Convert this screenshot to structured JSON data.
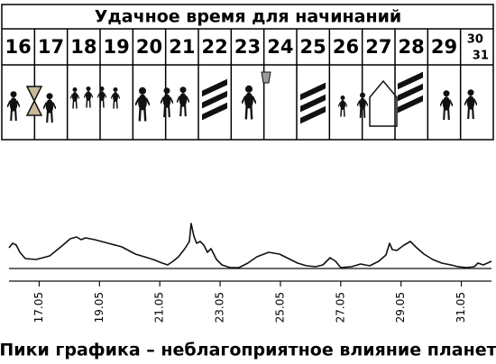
{
  "header": {
    "title": "Удачное время для начинаний"
  },
  "calendar": {
    "days": [
      "16",
      "17",
      "18",
      "19",
      "20",
      "21",
      "22",
      "23",
      "24",
      "25",
      "26",
      "27",
      "28",
      "29",
      "30",
      "31"
    ]
  },
  "chart_data": {
    "type": "line",
    "x": [
      16.0,
      16.12,
      16.24,
      16.36,
      16.54,
      16.9,
      17.35,
      17.79,
      18.03,
      18.24,
      18.39,
      18.54,
      18.84,
      19.29,
      19.74,
      20.19,
      20.49,
      20.78,
      21.08,
      21.26,
      21.44,
      21.62,
      21.83,
      21.98,
      22.04,
      22.13,
      22.22,
      22.34,
      22.46,
      22.58,
      22.7,
      22.88,
      23.06,
      23.33,
      23.63,
      23.92,
      24.22,
      24.61,
      24.97,
      25.27,
      25.57,
      25.87,
      26.17,
      26.41,
      26.65,
      26.83,
      27.0,
      27.36,
      27.66,
      27.96,
      28.26,
      28.5,
      28.62,
      28.71,
      28.86,
      29.1,
      29.31,
      29.52,
      29.76,
      30.05,
      30.35,
      30.65,
      30.89,
      31.19,
      31.43,
      31.55,
      31.73,
      32.0
    ],
    "values": [
      4.6,
      5.6,
      5.2,
      3.6,
      2.2,
      2.0,
      2.8,
      5.2,
      6.6,
      7.0,
      6.4,
      6.8,
      6.4,
      5.6,
      4.8,
      3.2,
      2.6,
      2.0,
      1.2,
      0.8,
      1.6,
      2.6,
      4.4,
      6.0,
      10.0,
      7.2,
      5.6,
      6.0,
      5.2,
      3.6,
      4.4,
      2.0,
      0.8,
      0.2,
      0.2,
      1.2,
      2.6,
      3.6,
      3.2,
      2.2,
      1.2,
      0.6,
      0.4,
      0.8,
      2.4,
      1.6,
      0.2,
      0.4,
      1.0,
      0.6,
      1.6,
      3.0,
      5.6,
      4.2,
      4.0,
      5.2,
      6.0,
      4.6,
      3.2,
      2.0,
      1.2,
      0.8,
      0.4,
      0.2,
      0.4,
      1.2,
      0.8,
      1.6
    ],
    "color": "#111111",
    "xlim": [
      16,
      32
    ],
    "ylim": [
      0,
      12
    ],
    "xticks": [
      {
        "value": 17,
        "label": "17.05"
      },
      {
        "value": 19,
        "label": "19.05"
      },
      {
        "value": 21,
        "label": "21.05"
      },
      {
        "value": 23,
        "label": "23.05"
      },
      {
        "value": 25,
        "label": "25.05"
      },
      {
        "value": 27,
        "label": "27.05"
      },
      {
        "value": 29,
        "label": "29.05"
      },
      {
        "value": 31,
        "label": "31.05"
      }
    ],
    "xlabel": "Пики графика – неблагоприятное влияние планет"
  }
}
